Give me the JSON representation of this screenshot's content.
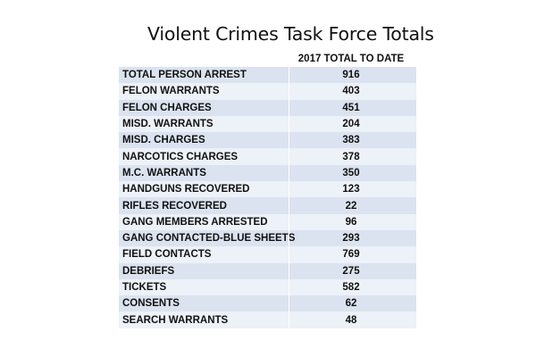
{
  "title": "Violent Crimes Task Force Totals",
  "table": {
    "header": {
      "label": "",
      "value": "2017 TOTAL TO DATE"
    },
    "rows": [
      {
        "label": "TOTAL PERSON ARREST",
        "value": "916"
      },
      {
        "label": "FELON WARRANTS",
        "value": "403"
      },
      {
        "label": "FELON CHARGES",
        "value": "451"
      },
      {
        "label": "MISD. WARRANTS",
        "value": "204"
      },
      {
        "label": "MISD. CHARGES",
        "value": "383"
      },
      {
        "label": "NARCOTICS CHARGES",
        "value": "378"
      },
      {
        "label": "M.C. WARRANTS",
        "value": "350"
      },
      {
        "label": "HANDGUNS RECOVERED",
        "value": "123"
      },
      {
        "label": "RIFLES RECOVERED",
        "value": "22"
      },
      {
        "label": "GANG MEMBERS ARRESTED",
        "value": "96"
      },
      {
        "label": "GANG CONTACTED-BLUE SHEETS",
        "value": "293"
      },
      {
        "label": "FIELD CONTACTS",
        "value": "769"
      },
      {
        "label": "DEBRIEFS",
        "value": "275"
      },
      {
        "label": "TICKETS",
        "value": "582"
      },
      {
        "label": "CONSENTS",
        "value": "62"
      },
      {
        "label": "SEARCH WARRANTS",
        "value": "48"
      }
    ]
  },
  "colors": {
    "row_odd": "#dbe3f0",
    "row_even": "#edf1f8",
    "text": "#111111",
    "background": "#ffffff"
  }
}
